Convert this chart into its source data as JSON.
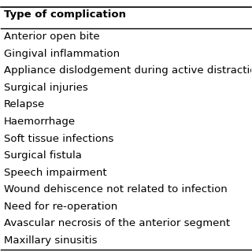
{
  "header": "Type of complication",
  "rows": [
    "Anterior open bite",
    "Gingival inflammation",
    "Appliance dislodgement during active distraction",
    "Surgical injuries",
    "Relapse",
    "Haemorrhage",
    "Soft tissue infections",
    "Surgical fistula",
    "Speech impairment",
    "Wound dehiscence not related to infection",
    "Need for re-operation",
    "Avascular necrosis of the anterior segment",
    "Maxillary sinusitis"
  ],
  "bg_color": "#ffffff",
  "text_color": "#000000",
  "header_fontsize": 9.5,
  "row_fontsize": 9.5,
  "line_color": "#000000",
  "fig_width": 3.2,
  "fig_height": 3.2
}
